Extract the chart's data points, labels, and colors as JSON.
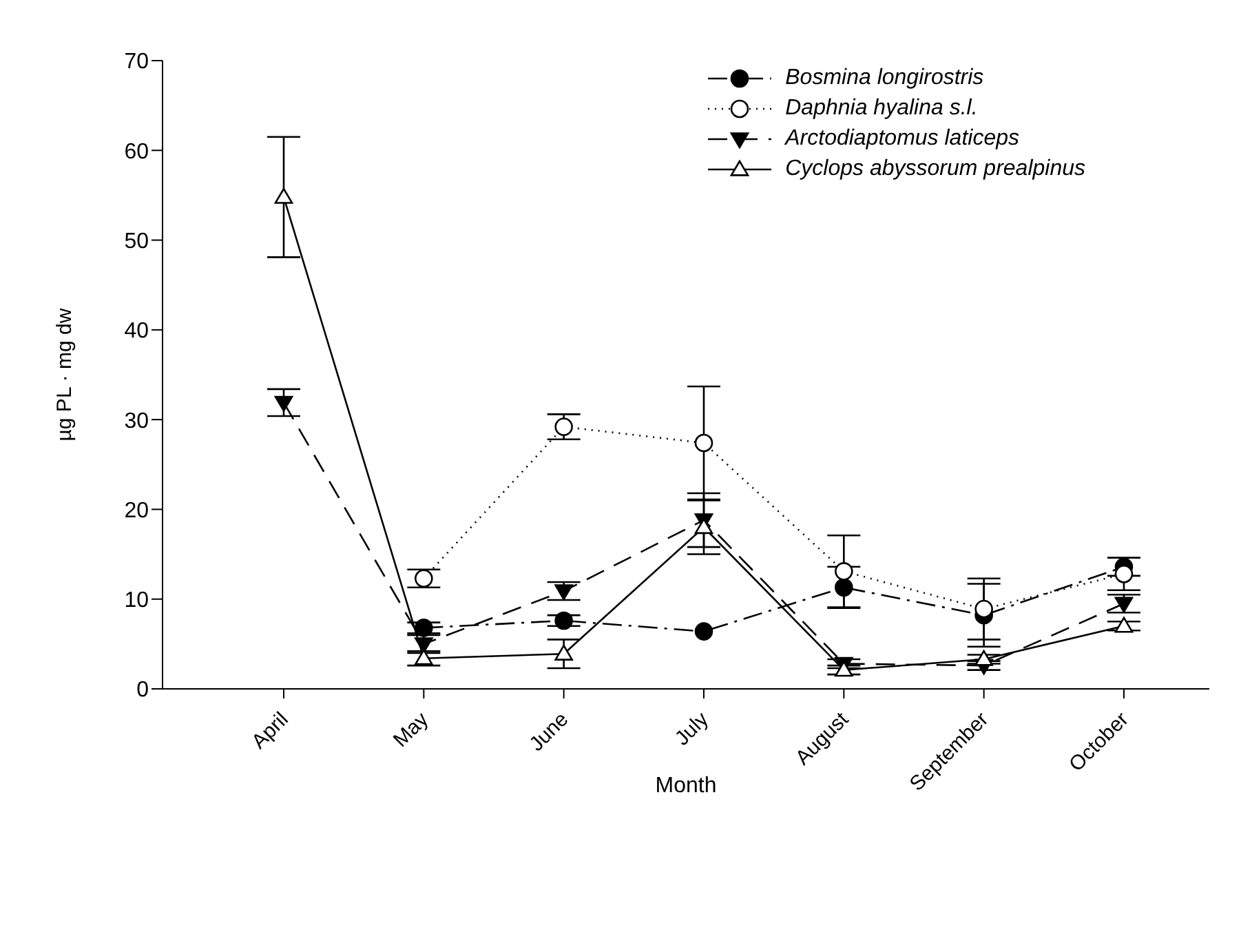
{
  "chart_data": {
    "type": "line",
    "xlabel": "Month",
    "ylabel": "µg PL · mg dw",
    "categories": [
      "April",
      "May",
      "June",
      "July",
      "August",
      "September",
      "October"
    ],
    "ylim": [
      0,
      70
    ],
    "yticks": [
      0,
      10,
      20,
      30,
      40,
      50,
      60,
      70
    ],
    "grid": false,
    "legend": "top right",
    "series": [
      {
        "name": "Bosmina longirostris",
        "color": "#000000",
        "marker": "circle",
        "line_style": "dashdot",
        "values": [
          null,
          6.8,
          7.6,
          6.4,
          11.3,
          8.2,
          13.6
        ],
        "errors": [
          null,
          0.6,
          0.6,
          null,
          2.3,
          3.5,
          1.0
        ]
      },
      {
        "name": "Daphnia hyalina s.l.",
        "color": "#000000",
        "marker": "circle-open",
        "line_style": "dotted",
        "values": [
          null,
          12.3,
          29.2,
          27.4,
          13.1,
          8.9,
          12.8
        ],
        "errors": [
          null,
          1.0,
          1.4,
          6.3,
          4.0,
          3.4,
          1.8
        ]
      },
      {
        "name": "Arctodiaptomus laticeps",
        "color": "#000000",
        "marker": "triangle-down",
        "line_style": "dashed",
        "values": [
          31.9,
          5.0,
          10.9,
          18.8,
          2.8,
          2.6,
          9.5
        ],
        "errors": [
          1.5,
          1.0,
          1.0,
          3.0,
          0.5,
          0.5,
          1.0
        ]
      },
      {
        "name": "Cyclops abyssorum prealpinus",
        "color": "#000000",
        "marker": "triangle-open",
        "line_style": "solid",
        "values": [
          54.8,
          3.4,
          3.9,
          18.0,
          2.1,
          3.3,
          7.0
        ],
        "errors": [
          6.7,
          0.8,
          1.6,
          3.0,
          0.5,
          0.5,
          0.5
        ]
      }
    ]
  }
}
